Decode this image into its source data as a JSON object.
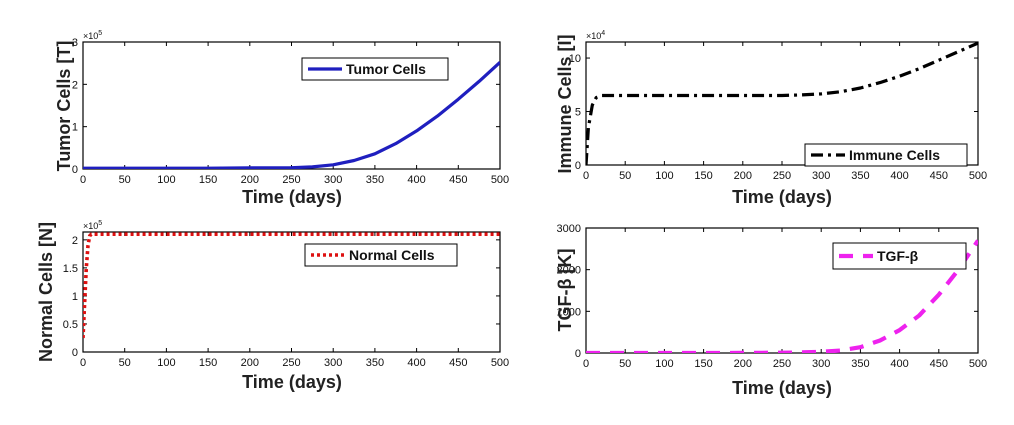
{
  "figure": {
    "panels": [
      "tumor",
      "immune",
      "normal",
      "tgf"
    ]
  },
  "chart_data": [
    {
      "id": "tumor",
      "type": "line",
      "xlabel": "Time (days)",
      "ylabel": "Tumor Cells [T]",
      "exponent_label": "×10",
      "exponent_power": "5",
      "xlim": [
        0,
        500
      ],
      "ylim": [
        0,
        3
      ],
      "xticks": [
        "0",
        "50",
        "100",
        "150",
        "200",
        "250",
        "300",
        "350",
        "400",
        "450",
        "500"
      ],
      "yticks": [
        "0",
        "1",
        "2",
        "3"
      ],
      "legend_position": "top-right",
      "series": [
        {
          "name": "Tumor Cells",
          "color": "#1f1fbf",
          "style": "solid",
          "x": [
            0,
            50,
            100,
            150,
            200,
            250,
            275,
            300,
            325,
            350,
            375,
            400,
            425,
            450,
            475,
            500
          ],
          "y": [
            0.02,
            0.02,
            0.02,
            0.02,
            0.025,
            0.03,
            0.05,
            0.1,
            0.2,
            0.36,
            0.6,
            0.9,
            1.25,
            1.65,
            2.07,
            2.52
          ]
        }
      ]
    },
    {
      "id": "immune",
      "type": "line",
      "xlabel": "Time (days)",
      "ylabel": "Immune Cells [I]",
      "exponent_label": "×10",
      "exponent_power": "4",
      "xlim": [
        0,
        500
      ],
      "ylim": [
        0,
        11.5
      ],
      "xticks": [
        "0",
        "50",
        "100",
        "150",
        "200",
        "250",
        "300",
        "350",
        "400",
        "450",
        "500"
      ],
      "yticks": [
        "0",
        "5",
        "10"
      ],
      "legend_position": "bottom-right",
      "series": [
        {
          "name": "Immune Cells",
          "color": "#000000",
          "style": "dashdot",
          "x": [
            0,
            3,
            8,
            13,
            20,
            30,
            50,
            100,
            150,
            200,
            250,
            275,
            300,
            325,
            350,
            375,
            400,
            425,
            450,
            475,
            500
          ],
          "y": [
            0,
            3.5,
            5.6,
            6.3,
            6.5,
            6.5,
            6.5,
            6.5,
            6.5,
            6.5,
            6.5,
            6.55,
            6.65,
            6.85,
            7.2,
            7.7,
            8.3,
            9.0,
            9.8,
            10.6,
            11.4
          ]
        }
      ]
    },
    {
      "id": "normal",
      "type": "line",
      "xlabel": "Time (days)",
      "ylabel": "Normal Cells [N]",
      "exponent_label": "×10",
      "exponent_power": "5",
      "xlim": [
        0,
        500
      ],
      "ylim": [
        0,
        2.14
      ],
      "xticks": [
        "0",
        "50",
        "100",
        "150",
        "200",
        "250",
        "300",
        "350",
        "400",
        "450",
        "500"
      ],
      "yticks": [
        "0",
        "0.5",
        "1",
        "1.5",
        "2"
      ],
      "legend_position": "top-right",
      "series": [
        {
          "name": "Normal Cells",
          "color": "#dd1111",
          "style": "dotted",
          "x": [
            0,
            2,
            4,
            6,
            8,
            10,
            15,
            50,
            100,
            200,
            300,
            400,
            500
          ],
          "y": [
            0.25,
            0.9,
            1.5,
            1.9,
            2.07,
            2.1,
            2.1,
            2.1,
            2.1,
            2.1,
            2.1,
            2.1,
            2.1
          ]
        }
      ]
    },
    {
      "id": "tgf",
      "type": "line",
      "xlabel": "Time (days)",
      "ylabel": "TGF-β [K]",
      "xlim": [
        0,
        500
      ],
      "ylim": [
        0,
        3000
      ],
      "xticks": [
        "0",
        "50",
        "100",
        "150",
        "200",
        "250",
        "300",
        "350",
        "400",
        "450",
        "500"
      ],
      "yticks": [
        "0",
        "1000",
        "2000",
        "3000"
      ],
      "legend_position": "top-right",
      "series": [
        {
          "name": "TGF-β",
          "color": "#ee22ee",
          "style": "dashed",
          "x": [
            0,
            50,
            100,
            150,
            200,
            250,
            275,
            300,
            325,
            350,
            375,
            400,
            425,
            450,
            475,
            500
          ],
          "y": [
            0,
            0,
            0,
            0,
            2,
            8,
            15,
            30,
            60,
            140,
            300,
            550,
            900,
            1400,
            2000,
            2700
          ]
        }
      ]
    }
  ]
}
